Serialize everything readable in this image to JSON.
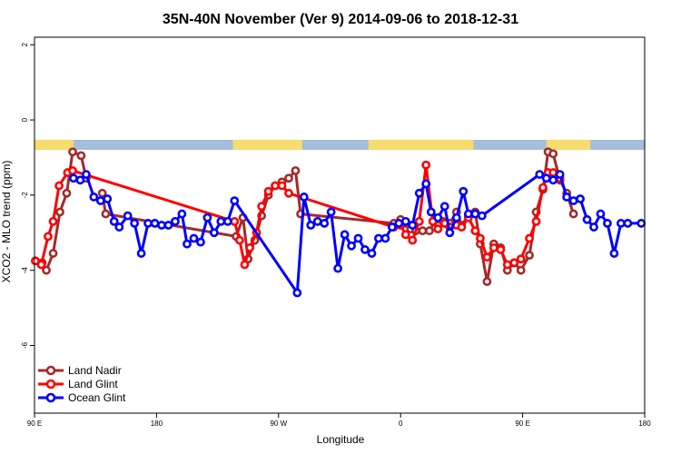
{
  "chart_data": {
    "type": "line",
    "title": "35N-40N November (Ver 9)   2014-09-06 to 2018-12-31",
    "xlabel": "Longitude",
    "ylabel": "XCO2 - MLO trend (ppm)",
    "xlim": [
      0,
      360
    ],
    "ylim": [
      -7.8,
      2.2
    ],
    "x_ticks": [
      {
        "value": 0,
        "label": "90 E"
      },
      {
        "value": 72,
        "label": "180"
      },
      {
        "value": 144,
        "label": "90 W"
      },
      {
        "value": 216,
        "label": "0"
      },
      {
        "value": 288,
        "label": "90 E"
      },
      {
        "value": 360,
        "label": "180"
      }
    ],
    "y_ticks": [
      {
        "value": 2,
        "label": "2"
      },
      {
        "value": 0,
        "label": "0"
      },
      {
        "value": -2,
        "label": "-2"
      },
      {
        "value": -4,
        "label": "-4"
      },
      {
        "value": -6,
        "label": "-6"
      }
    ],
    "grid": false,
    "legend_position": "bottom-left",
    "colors": {
      "ocean_band": "#a3bddb",
      "land_band": "#f7dc6e",
      "frame": "#000000"
    },
    "land_mask": [
      [
        0,
        23
      ],
      [
        117,
        158
      ],
      [
        197,
        259
      ],
      [
        302,
        328
      ]
    ],
    "series": [
      {
        "name": "Land Nadir",
        "color": "#a52a2a",
        "points": [
          [
            4.5,
            -3.8
          ],
          [
            7,
            -4.0
          ],
          [
            11,
            -3.55
          ],
          [
            15,
            -2.45
          ],
          [
            19,
            -1.95
          ],
          [
            22.5,
            -0.85
          ],
          [
            27.5,
            -0.95
          ],
          [
            30.5,
            -1.55
          ],
          [
            35,
            null
          ],
          [
            40,
            -1.95
          ],
          [
            42,
            -2.5
          ],
          [
            119,
            -3.1
          ],
          [
            123,
            -2.6
          ],
          [
            126,
            -3.7
          ],
          [
            130,
            -3.2
          ],
          [
            134,
            -2.55
          ],
          [
            138,
            -2.0
          ],
          [
            142,
            -1.75
          ],
          [
            146,
            -1.65
          ],
          [
            150,
            -1.55
          ],
          [
            154,
            -1.35
          ],
          [
            157,
            -2.5
          ],
          [
            212,
            -2.75
          ],
          [
            216,
            -2.65
          ],
          [
            219,
            -2.75
          ],
          [
            222,
            -2.9
          ],
          [
            225,
            -2.95
          ],
          [
            229,
            -2.95
          ],
          [
            233,
            -2.95
          ],
          [
            237,
            -2.65
          ],
          [
            241,
            -2.7
          ],
          [
            245,
            -2.75
          ],
          [
            249,
            -2.45
          ],
          [
            252,
            -2.8
          ],
          [
            256,
            -2.55
          ],
          [
            260,
            -2.45
          ],
          [
            263,
            -3.3
          ],
          [
            267,
            -4.3
          ],
          [
            271,
            -3.3
          ],
          [
            275,
            -3.4
          ],
          [
            279,
            -4.0
          ],
          [
            283,
            -3.8
          ],
          [
            287,
            -4.0
          ],
          [
            292,
            -3.6
          ],
          [
            296,
            -2.45
          ],
          [
            300,
            -1.85
          ],
          [
            303,
            -0.85
          ],
          [
            306,
            -0.9
          ],
          [
            310,
            -1.6
          ],
          [
            314,
            -1.95
          ],
          [
            318,
            -2.5
          ]
        ]
      },
      {
        "name": "Land Glint",
        "color": "#ff0000",
        "points": [
          [
            0.5,
            -3.75
          ],
          [
            4,
            -3.85
          ],
          [
            8,
            -3.1
          ],
          [
            11,
            -2.7
          ],
          [
            14.5,
            -1.75
          ],
          [
            19.5,
            -1.4
          ],
          [
            22.5,
            -1.35
          ],
          [
            118,
            -2.7
          ],
          [
            121,
            -3.2
          ],
          [
            124,
            -3.85
          ],
          [
            127,
            -3.4
          ],
          [
            131,
            -3.0
          ],
          [
            134,
            -2.3
          ],
          [
            138,
            -1.9
          ],
          [
            142,
            -1.75
          ],
          [
            146,
            -1.75
          ],
          [
            150,
            -1.95
          ],
          [
            212,
            -2.85
          ],
          [
            216,
            -2.8
          ],
          [
            219,
            -3.05
          ],
          [
            223,
            -3.2
          ],
          [
            227,
            -2.7
          ],
          [
            231,
            -1.2
          ],
          [
            235,
            -2.7
          ],
          [
            238,
            -2.9
          ],
          [
            242,
            -2.75
          ],
          [
            245,
            -2.85
          ],
          [
            249,
            -2.8
          ],
          [
            252,
            -2.85
          ],
          [
            256,
            -2.6
          ],
          [
            260,
            -2.95
          ],
          [
            263,
            -3.15
          ],
          [
            267,
            -3.65
          ],
          [
            271,
            -3.4
          ],
          [
            275,
            -3.45
          ],
          [
            279,
            -3.85
          ],
          [
            283,
            -3.8
          ],
          [
            287,
            -3.7
          ],
          [
            292,
            -3.15
          ],
          [
            296,
            -2.7
          ],
          [
            300,
            -1.8
          ],
          [
            303,
            -1.4
          ],
          [
            306,
            -1.4
          ],
          [
            310,
            -1.55
          ]
        ]
      },
      {
        "name": "Ocean Glint",
        "color": "#0000ff",
        "points": [
          [
            23,
            -1.55
          ],
          [
            27,
            -1.6
          ],
          [
            30.5,
            -1.45
          ],
          [
            35,
            -2.05
          ],
          [
            39,
            -2.15
          ],
          [
            43,
            -2.1
          ],
          [
            47,
            -2.7
          ],
          [
            50,
            -2.85
          ],
          [
            55,
            -2.55
          ],
          [
            59,
            -2.75
          ],
          [
            63,
            -3.55
          ],
          [
            67,
            -2.75
          ],
          [
            71,
            -2.75
          ],
          [
            75,
            -2.8
          ],
          [
            79,
            -2.8
          ],
          [
            83,
            -2.7
          ],
          [
            87,
            -2.5
          ],
          [
            90,
            -3.3
          ],
          [
            94,
            -3.15
          ],
          [
            98,
            -3.25
          ],
          [
            102,
            -2.6
          ],
          [
            106,
            -3.0
          ],
          [
            110,
            -2.7
          ],
          [
            114,
            -2.7
          ],
          [
            118,
            -2.15
          ],
          [
            155,
            -4.6
          ],
          [
            159,
            -2.05
          ],
          [
            163,
            -2.8
          ],
          [
            167,
            -2.7
          ],
          [
            171,
            -2.75
          ],
          [
            175,
            -2.45
          ],
          [
            179,
            -3.95
          ],
          [
            183,
            -3.05
          ],
          [
            187,
            -3.35
          ],
          [
            191,
            -3.15
          ],
          [
            195,
            -3.45
          ],
          [
            199,
            -3.55
          ],
          [
            203,
            -3.15
          ],
          [
            207,
            -3.15
          ],
          [
            211,
            -2.85
          ],
          [
            215,
            -2.75
          ],
          [
            219,
            -2.7
          ],
          [
            223,
            -2.8
          ],
          [
            227,
            -1.95
          ],
          [
            231,
            -1.7
          ],
          [
            234,
            -2.45
          ],
          [
            238,
            -2.6
          ],
          [
            242,
            -2.3
          ],
          [
            245,
            -3.0
          ],
          [
            249,
            -2.6
          ],
          [
            253,
            -1.9
          ],
          [
            256,
            -2.5
          ],
          [
            260,
            -2.5
          ],
          [
            264,
            -2.55
          ],
          [
            298,
            -1.45
          ],
          [
            302,
            -1.55
          ],
          [
            306,
            -1.6
          ],
          [
            310,
            -1.45
          ],
          [
            314,
            -2.05
          ],
          [
            318,
            -2.15
          ],
          [
            322,
            -2.1
          ],
          [
            326,
            -2.65
          ],
          [
            330,
            -2.85
          ],
          [
            334,
            -2.5
          ],
          [
            338,
            -2.75
          ],
          [
            342,
            -3.55
          ],
          [
            346,
            -2.75
          ],
          [
            350,
            -2.75
          ],
          [
            358,
            -2.75
          ]
        ]
      }
    ]
  }
}
